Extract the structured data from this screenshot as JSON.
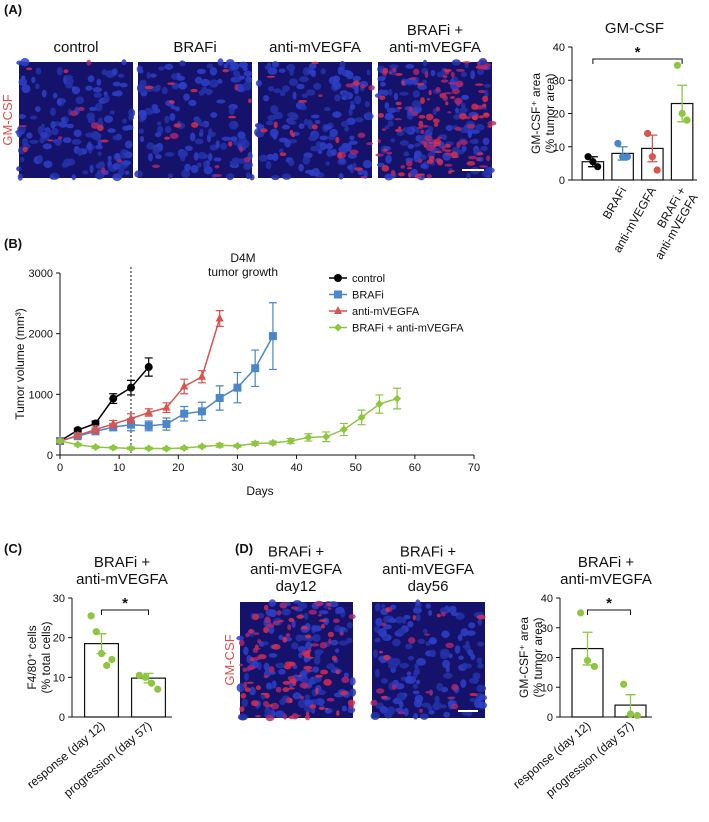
{
  "figure": {
    "panels": [
      "(A)",
      "(B)",
      "(C)",
      "(D)"
    ],
    "image_labels_a": [
      "control",
      "BRAFi",
      "anti-mVEGFA",
      "BRAFi +\nanti-mVEGFA"
    ],
    "stain_label_a": "GM-CSF",
    "image_labels_d": [
      "BRAFi +\nanti-mVEGFA\nday12",
      "BRAFi +\nanti-mVEGFA\nday56"
    ],
    "stain_label_d": "GM-CSF"
  },
  "chart_data": [
    {
      "type": "bar",
      "title": "GM-CSF",
      "y_label": "GM-CSF⁺ area\n(% tumor area)",
      "categories": [
        null,
        "BRAFi",
        "anti-mVEGFA",
        "BRAFi +\nanti-mVEGFA"
      ],
      "values": [
        5.5,
        8,
        9.5,
        23
      ],
      "errors": [
        1.5,
        2,
        4,
        5.5
      ],
      "points": [
        [
          7,
          5.5,
          4
        ],
        [
          11,
          7,
          7
        ],
        [
          14,
          7,
          3
        ],
        [
          34.5,
          20,
          18
        ]
      ],
      "colors": [
        "#000000",
        "#4a86c8",
        "#d9534f",
        "#8dc63f"
      ],
      "ylim": [
        0,
        40
      ],
      "yticks": [
        0,
        10,
        20,
        30,
        40
      ],
      "annotations": [
        "*"
      ]
    },
    {
      "type": "line",
      "title": "D4M",
      "subtitle": "tumor growth",
      "x_label": "Days",
      "y_label": "Tumor volume (mm³)",
      "xlim": [
        0,
        70
      ],
      "xticks": [
        0,
        10,
        20,
        30,
        40,
        50,
        60,
        70
      ],
      "ylim": [
        0,
        3000
      ],
      "yticks": [
        0,
        1000,
        2000,
        3000
      ],
      "vline": 12,
      "legend": "upper right",
      "series": [
        {
          "name": "control",
          "color": "#000000",
          "marker": "circle",
          "x": [
            0,
            3,
            6,
            9,
            12,
            15
          ],
          "values": [
            230,
            410,
            520,
            930,
            1110,
            1450
          ],
          "errors": [
            30,
            30,
            40,
            80,
            120,
            150
          ]
        },
        {
          "name": "BRAFi",
          "color": "#4a86c8",
          "marker": "square",
          "x": [
            0,
            3,
            6,
            9,
            12,
            15,
            18,
            21,
            24,
            27,
            30,
            33,
            36
          ],
          "values": [
            230,
            310,
            390,
            460,
            500,
            480,
            510,
            680,
            720,
            940,
            1110,
            1430,
            1960
          ],
          "errors": [
            30,
            30,
            50,
            60,
            100,
            80,
            100,
            120,
            150,
            200,
            250,
            300,
            550
          ]
        },
        {
          "name": "anti-mVEGFA",
          "color": "#d9534f",
          "marker": "triangle",
          "x": [
            0,
            3,
            6,
            9,
            12,
            15,
            18,
            21,
            24,
            27
          ],
          "values": [
            230,
            320,
            420,
            510,
            600,
            700,
            780,
            1130,
            1290,
            2250
          ],
          "errors": [
            30,
            40,
            60,
            60,
            80,
            60,
            80,
            120,
            100,
            130
          ]
        },
        {
          "name": "BRAFi + anti-mVEGFA",
          "color": "#8dc63f",
          "marker": "diamond",
          "x": [
            0,
            3,
            6,
            9,
            12,
            15,
            18,
            21,
            24,
            27,
            30,
            33,
            36,
            39,
            42,
            45,
            48,
            51,
            54,
            57
          ],
          "values": [
            230,
            170,
            130,
            120,
            110,
            110,
            105,
            115,
            140,
            160,
            150,
            190,
            200,
            230,
            290,
            300,
            420,
            620,
            840,
            930
          ],
          "errors": [
            20,
            20,
            20,
            20,
            20,
            20,
            20,
            20,
            20,
            30,
            20,
            30,
            30,
            40,
            60,
            80,
            100,
            120,
            150,
            170
          ]
        }
      ]
    },
    {
      "type": "bar",
      "title": "BRAFi +\nanti-mVEGFA",
      "y_label": "F4/80⁺ cells\n(% total cells)",
      "categories": [
        "response (day 12)",
        "progression (day 57)"
      ],
      "values": [
        18.5,
        9.8
      ],
      "errors": [
        2.5,
        1.2
      ],
      "points": [
        [
          25.5,
          21.5,
          16,
          13,
          14.5
        ],
        [
          10.5,
          10,
          8.5,
          7
        ]
      ],
      "color": "#8dc63f",
      "ylim": [
        0,
        30
      ],
      "yticks": [
        0,
        10,
        20,
        30
      ],
      "annotations": [
        "*"
      ]
    },
    {
      "type": "bar",
      "title": "BRAFi +\nanti-mVEGFA",
      "y_label": "GM-CSF⁺ area\n(% tumor area)",
      "categories": [
        "response (day 12)",
        "progression (day 57)"
      ],
      "values": [
        23,
        4
      ],
      "errors": [
        5.5,
        3.5
      ],
      "points": [
        [
          35,
          19,
          17
        ],
        [
          11,
          1,
          0.5
        ]
      ],
      "color": "#8dc63f",
      "ylim": [
        0,
        40
      ],
      "yticks": [
        0,
        10,
        20,
        30,
        40
      ],
      "annotations": [
        "*"
      ]
    }
  ]
}
